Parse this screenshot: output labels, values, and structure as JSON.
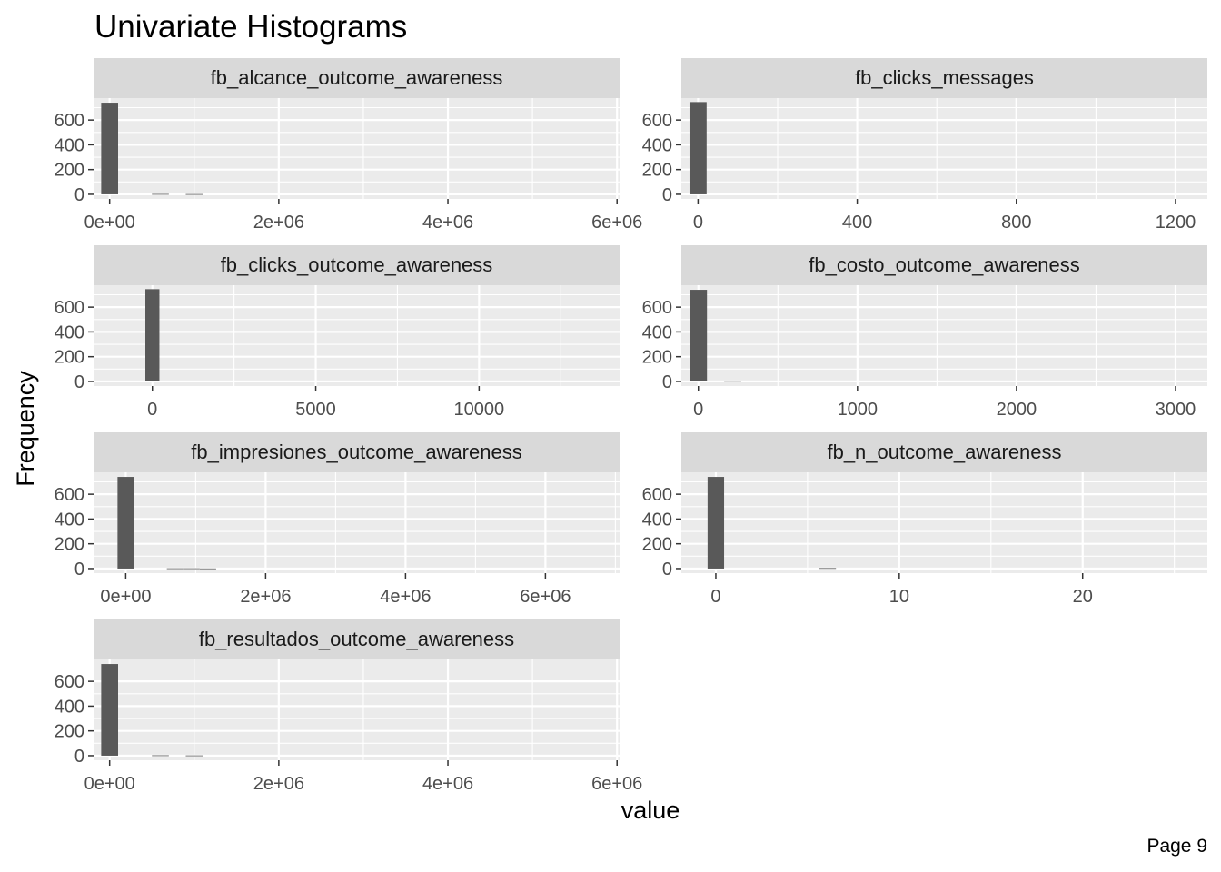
{
  "page": {
    "label": "Page 9"
  },
  "chart_data": {
    "type": "bar",
    "title": "Univariate Histograms",
    "xlabel": "value",
    "ylabel": "Frequency",
    "grid": true,
    "colors": {
      "panel_bg": "#EBEBEB",
      "strip_bg": "#D9D9D9",
      "grid": "#FFFFFF",
      "bar": "#595959",
      "text": "#4D4D4D"
    },
    "panels": [
      {
        "title": "fb_alcance_outcome_awareness",
        "xlim": [
          -190000,
          6030000
        ],
        "ylim": [
          -37,
          777
        ],
        "x_ticks": [
          0,
          2000000,
          4000000,
          6000000
        ],
        "x_tick_labels": [
          "0e+00",
          "2e+06",
          "4e+06",
          "6e+06"
        ],
        "x_minor": [
          1000000,
          3000000,
          5000000
        ],
        "y_ticks": [
          0,
          200,
          400,
          600
        ],
        "y_tick_labels": [
          "0",
          "200",
          "400",
          "600"
        ],
        "bin_width": 200000,
        "bars": [
          {
            "x": 0,
            "count": 740
          },
          {
            "x": 600000,
            "count": 3
          },
          {
            "x": 1000000,
            "count": 2
          }
        ]
      },
      {
        "title": "fb_clicks_messages",
        "xlim": [
          -42,
          1280
        ],
        "ylim": [
          -37,
          777
        ],
        "x_ticks": [
          0,
          400,
          800,
          1200
        ],
        "x_tick_labels": [
          "0",
          "400",
          "800",
          "1200"
        ],
        "x_minor": [
          200,
          600,
          1000
        ],
        "y_ticks": [
          0,
          200,
          400,
          600
        ],
        "y_tick_labels": [
          "0",
          "200",
          "400",
          "600"
        ],
        "bin_width": 43,
        "bars": [
          {
            "x": 0,
            "count": 745
          }
        ]
      },
      {
        "title": "fb_clicks_outcome_awareness",
        "xlim": [
          -1800,
          14300
        ],
        "ylim": [
          -37,
          777
        ],
        "x_ticks": [
          0,
          5000,
          10000
        ],
        "x_tick_labels": [
          "0",
          "5000",
          "10000"
        ],
        "x_minor": [
          2500,
          7500,
          12500
        ],
        "y_ticks": [
          0,
          200,
          400,
          600
        ],
        "y_tick_labels": [
          "0",
          "200",
          "400",
          "600"
        ],
        "bin_width": 430,
        "bars": [
          {
            "x": 0,
            "count": 745
          }
        ]
      },
      {
        "title": "fb_costo_outcome_awareness",
        "xlim": [
          -107,
          3200
        ],
        "ylim": [
          -37,
          777
        ],
        "x_ticks": [
          0,
          1000,
          2000,
          3000
        ],
        "x_tick_labels": [
          "0",
          "1000",
          "2000",
          "3000"
        ],
        "x_minor": [
          500,
          1500,
          2500
        ],
        "y_ticks": [
          0,
          200,
          400,
          600
        ],
        "y_tick_labels": [
          "0",
          "200",
          "400",
          "600"
        ],
        "bin_width": 108,
        "bars": [
          {
            "x": 0,
            "count": 740
          },
          {
            "x": 216,
            "count": 4
          }
        ]
      },
      {
        "title": "fb_impresiones_outcome_awareness",
        "xlim": [
          -460000,
          7060000
        ],
        "ylim": [
          -37,
          777
        ],
        "x_ticks": [
          0,
          2000000,
          4000000,
          6000000
        ],
        "x_tick_labels": [
          "0e+00",
          "2e+06",
          "4e+06",
          "6e+06"
        ],
        "x_minor": [
          1000000,
          3000000,
          5000000,
          7000000
        ],
        "y_ticks": [
          0,
          200,
          400,
          600
        ],
        "y_tick_labels": [
          "0",
          "200",
          "400",
          "600"
        ],
        "bin_width": 235000,
        "bars": [
          {
            "x": 0,
            "count": 740
          },
          {
            "x": 705000,
            "count": 2
          },
          {
            "x": 940000,
            "count": 2
          },
          {
            "x": 1175000,
            "count": 1
          }
        ]
      },
      {
        "title": "fb_n_outcome_awareness",
        "xlim": [
          -1.88,
          26.8
        ],
        "ylim": [
          -37,
          777
        ],
        "x_ticks": [
          0,
          10,
          20
        ],
        "x_tick_labels": [
          "0",
          "10",
          "20"
        ],
        "x_minor": [
          5,
          15,
          25
        ],
        "y_ticks": [
          0,
          200,
          400,
          600
        ],
        "y_tick_labels": [
          "0",
          "200",
          "400",
          "600"
        ],
        "bin_width": 0.9,
        "bars": [
          {
            "x": 0,
            "count": 740
          },
          {
            "x": 6.1,
            "count": 4
          }
        ]
      },
      {
        "title": "fb_resultados_outcome_awareness",
        "xlim": [
          -190000,
          6030000
        ],
        "ylim": [
          -37,
          777
        ],
        "x_ticks": [
          0,
          2000000,
          4000000,
          6000000
        ],
        "x_tick_labels": [
          "0e+00",
          "2e+06",
          "4e+06",
          "6e+06"
        ],
        "x_minor": [
          1000000,
          3000000,
          5000000
        ],
        "y_ticks": [
          0,
          200,
          400,
          600
        ],
        "y_tick_labels": [
          "0",
          "200",
          "400",
          "600"
        ],
        "bin_width": 200000,
        "bars": [
          {
            "x": 0,
            "count": 740
          },
          {
            "x": 600000,
            "count": 3
          },
          {
            "x": 1000000,
            "count": 2
          }
        ]
      }
    ]
  }
}
